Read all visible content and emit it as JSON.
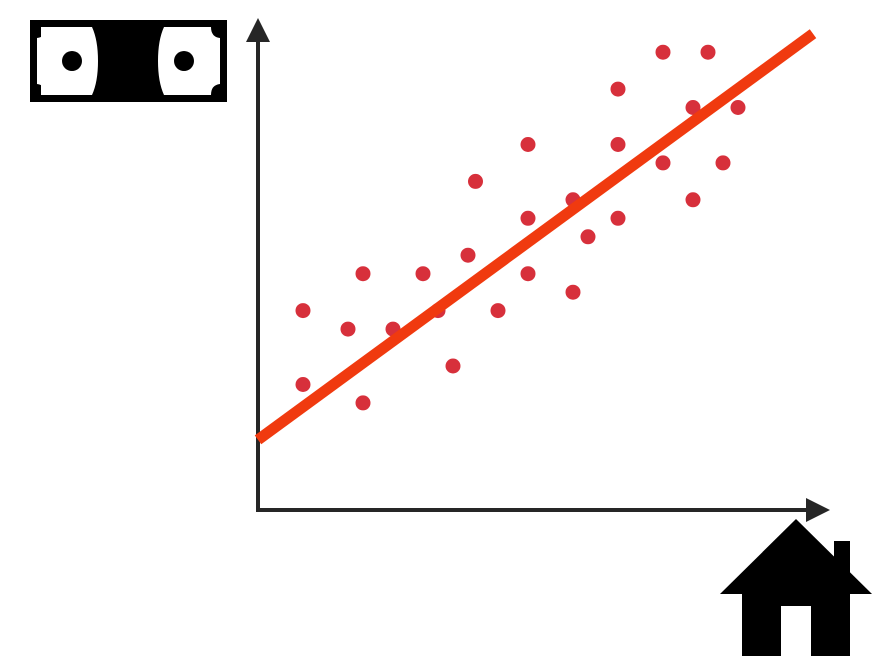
{
  "icons": {
    "y_axis": "money-bill-icon",
    "x_axis": "house-icon"
  },
  "colors": {
    "points": "#d7303b",
    "trend_line": "#f03a0f",
    "axes": "#262626",
    "icons": "#000000",
    "background": "#ffffff"
  },
  "chart_data": {
    "type": "scatter",
    "title": "",
    "xlabel": "",
    "ylabel": "",
    "xlim": [
      0,
      19
    ],
    "ylim": [
      0,
      13
    ],
    "grid": false,
    "legend": "none",
    "axis_ticks": false,
    "points": [
      {
        "x": 1.5,
        "y": 5.4
      },
      {
        "x": 1.5,
        "y": 3.4
      },
      {
        "x": 3.0,
        "y": 4.9
      },
      {
        "x": 3.5,
        "y": 6.4
      },
      {
        "x": 3.5,
        "y": 2.9
      },
      {
        "x": 4.5,
        "y": 4.9
      },
      {
        "x": 5.5,
        "y": 6.4
      },
      {
        "x": 6.0,
        "y": 5.4
      },
      {
        "x": 6.5,
        "y": 3.9
      },
      {
        "x": 7.0,
        "y": 6.9
      },
      {
        "x": 7.25,
        "y": 8.9
      },
      {
        "x": 8.0,
        "y": 5.4
      },
      {
        "x": 9.0,
        "y": 9.9
      },
      {
        "x": 9.0,
        "y": 7.9
      },
      {
        "x": 9.0,
        "y": 6.4
      },
      {
        "x": 10.5,
        "y": 8.4
      },
      {
        "x": 10.5,
        "y": 5.9
      },
      {
        "x": 11.0,
        "y": 7.4
      },
      {
        "x": 12.0,
        "y": 11.4
      },
      {
        "x": 12.0,
        "y": 9.9
      },
      {
        "x": 12.0,
        "y": 7.9
      },
      {
        "x": 13.5,
        "y": 12.4
      },
      {
        "x": 13.5,
        "y": 9.4
      },
      {
        "x": 14.5,
        "y": 10.9
      },
      {
        "x": 14.5,
        "y": 8.4
      },
      {
        "x": 15.0,
        "y": 12.4
      },
      {
        "x": 15.5,
        "y": 9.4
      },
      {
        "x": 16.0,
        "y": 10.9
      }
    ],
    "trend_line": {
      "x": [
        0,
        18.5
      ],
      "y": [
        1.9,
        12.9
      ]
    }
  }
}
